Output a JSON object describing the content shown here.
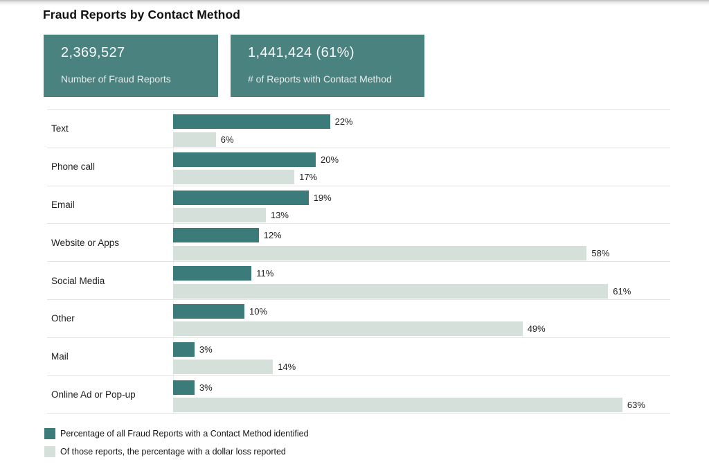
{
  "page": {
    "title": "Fraud Reports by Contact Method"
  },
  "stat_boxes": [
    {
      "value": "2,369,527",
      "label": "Number of Fraud Reports"
    },
    {
      "value": "1,441,424 (61%)",
      "label": "# of Reports with Contact Method"
    }
  ],
  "colors": {
    "bar_dark_teal": "#3B7C7A",
    "bar_light_green": "#D5E0DA",
    "stat_box_teal": "#4A8280",
    "separator_gray": "#E3E3E3"
  },
  "chart_data": {
    "type": "bar",
    "orientation": "horizontal",
    "title": "Fraud Reports by Contact Method",
    "categories": [
      "Text",
      "Phone call",
      "Email",
      "Website or Apps",
      "Social Media",
      "Other",
      "Mail",
      "Online Ad or Pop-up"
    ],
    "series": [
      {
        "name": "Percentage of all Fraud Reports with a Contact Method identified",
        "color": "#3B7C7A",
        "values": [
          22,
          20,
          19,
          12,
          11,
          10,
          3,
          3
        ]
      },
      {
        "name": "Of those reports, the percentage with a dollar loss reported",
        "color": "#D5E0DA",
        "values": [
          6,
          17,
          13,
          58,
          61,
          49,
          14,
          63
        ]
      }
    ],
    "value_suffix": "%",
    "xlim": [
      0,
      70
    ],
    "grid": false,
    "data_labels": true,
    "legend_position": "bottom"
  }
}
